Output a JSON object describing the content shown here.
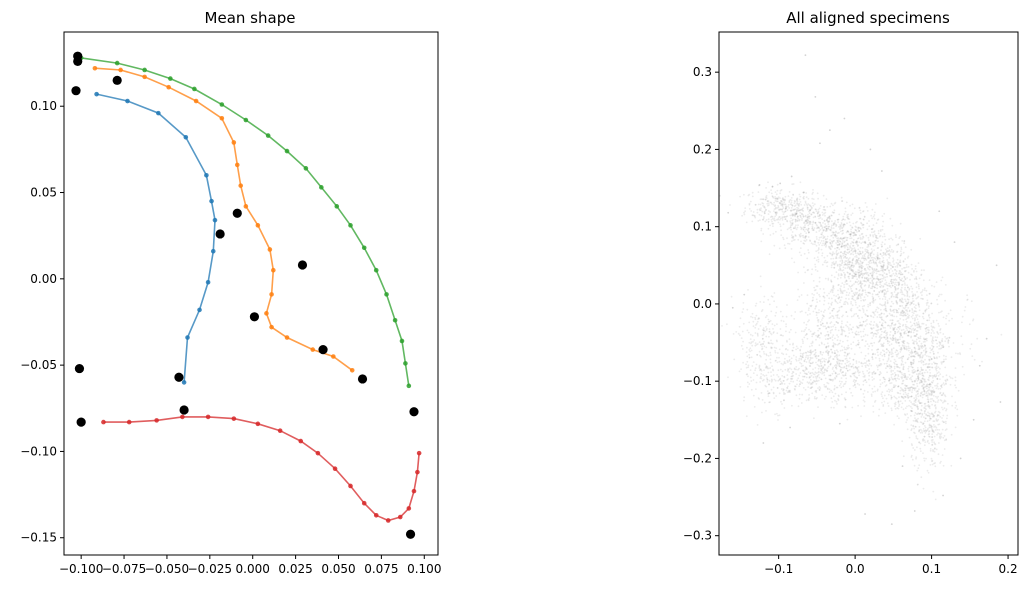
{
  "chart_data": [
    {
      "type": "line",
      "title": "Mean shape",
      "xlabel": "",
      "ylabel": "",
      "xlim": [
        -0.11,
        0.108
      ],
      "ylim": [
        -0.16,
        0.143
      ],
      "xticks": [
        -0.1,
        -0.075,
        -0.05,
        -0.025,
        0.0,
        0.025,
        0.05,
        0.075,
        0.1
      ],
      "xtick_labels": [
        "−0.100",
        "−0.075",
        "−0.050",
        "−0.025",
        "0.000",
        "0.025",
        "0.050",
        "0.075",
        "0.100"
      ],
      "yticks": [
        -0.15,
        -0.1,
        -0.05,
        0.0,
        0.05,
        0.1
      ],
      "ytick_labels": [
        "−0.15",
        "−0.10",
        "−0.05",
        "0.00",
        "0.05",
        "0.10"
      ],
      "series": [
        {
          "color": "#1f77b4",
          "points": [
            [
              -0.091,
              0.107
            ],
            [
              -0.073,
              0.103
            ],
            [
              -0.055,
              0.096
            ],
            [
              -0.039,
              0.082
            ],
            [
              -0.027,
              0.06
            ],
            [
              -0.024,
              0.045
            ],
            [
              -0.022,
              0.034
            ],
            [
              -0.023,
              0.016
            ],
            [
              -0.026,
              -0.002
            ],
            [
              -0.031,
              -0.018
            ],
            [
              -0.038,
              -0.034
            ],
            [
              -0.04,
              -0.06
            ]
          ]
        },
        {
          "color": "#ff7f0e",
          "points": [
            [
              -0.092,
              0.122
            ],
            [
              -0.077,
              0.121
            ],
            [
              -0.063,
              0.117
            ],
            [
              -0.049,
              0.111
            ],
            [
              -0.033,
              0.103
            ],
            [
              -0.018,
              0.093
            ],
            [
              -0.011,
              0.079
            ],
            [
              -0.009,
              0.066
            ],
            [
              -0.007,
              0.054
            ],
            [
              -0.004,
              0.042
            ],
            [
              0.003,
              0.031
            ],
            [
              0.01,
              0.017
            ],
            [
              0.012,
              0.005
            ],
            [
              0.011,
              -0.009
            ],
            [
              0.008,
              -0.02
            ],
            [
              0.011,
              -0.028
            ],
            [
              0.02,
              -0.034
            ],
            [
              0.035,
              -0.041
            ],
            [
              0.047,
              -0.045
            ],
            [
              0.058,
              -0.053
            ]
          ]
        },
        {
          "color": "#2ca02c",
          "points": [
            [
              -0.1,
              0.128
            ],
            [
              -0.079,
              0.125
            ],
            [
              -0.063,
              0.121
            ],
            [
              -0.048,
              0.116
            ],
            [
              -0.034,
              0.11
            ],
            [
              -0.018,
              0.101
            ],
            [
              -0.004,
              0.092
            ],
            [
              0.009,
              0.083
            ],
            [
              0.02,
              0.074
            ],
            [
              0.031,
              0.064
            ],
            [
              0.04,
              0.053
            ],
            [
              0.049,
              0.042
            ],
            [
              0.057,
              0.031
            ],
            [
              0.065,
              0.018
            ],
            [
              0.072,
              0.005
            ],
            [
              0.078,
              -0.009
            ],
            [
              0.083,
              -0.024
            ],
            [
              0.087,
              -0.036
            ],
            [
              0.089,
              -0.049
            ],
            [
              0.091,
              -0.062
            ]
          ]
        },
        {
          "color": "#d62728",
          "points": [
            [
              -0.087,
              -0.083
            ],
            [
              -0.072,
              -0.083
            ],
            [
              -0.056,
              -0.082
            ],
            [
              -0.041,
              -0.08
            ],
            [
              -0.026,
              -0.08
            ],
            [
              -0.011,
              -0.081
            ],
            [
              0.003,
              -0.084
            ],
            [
              0.016,
              -0.088
            ],
            [
              0.028,
              -0.094
            ],
            [
              0.038,
              -0.101
            ],
            [
              0.048,
              -0.11
            ],
            [
              0.057,
              -0.12
            ],
            [
              0.065,
              -0.13
            ],
            [
              0.072,
              -0.137
            ],
            [
              0.079,
              -0.14
            ],
            [
              0.086,
              -0.138
            ],
            [
              0.091,
              -0.133
            ],
            [
              0.094,
              -0.123
            ],
            [
              0.096,
              -0.112
            ],
            [
              0.097,
              -0.101
            ]
          ]
        }
      ],
      "landmarks": [
        [
          -0.102,
          0.129
        ],
        [
          -0.102,
          0.126
        ],
        [
          -0.103,
          0.109
        ],
        [
          -0.079,
          0.115
        ],
        [
          -0.009,
          0.038
        ],
        [
          -0.019,
          0.026
        ],
        [
          0.029,
          0.008
        ],
        [
          0.001,
          -0.022
        ],
        [
          0.041,
          -0.041
        ],
        [
          0.064,
          -0.058
        ],
        [
          -0.101,
          -0.052
        ],
        [
          -0.043,
          -0.057
        ],
        [
          -0.04,
          -0.076
        ],
        [
          -0.1,
          -0.083
        ],
        [
          0.094,
          -0.077
        ],
        [
          0.092,
          -0.148
        ]
      ]
    },
    {
      "type": "scatter",
      "title": "All aligned specimens",
      "xlabel": "",
      "ylabel": "",
      "xlim": [
        -0.178,
        0.213
      ],
      "ylim": [
        -0.325,
        0.352
      ],
      "xticks": [
        -0.1,
        0.0,
        0.1,
        0.2
      ],
      "xtick_labels": [
        "−0.1",
        "0.0",
        "0.1",
        "0.2"
      ],
      "yticks": [
        -0.3,
        -0.2,
        -0.1,
        0.0,
        0.1,
        0.2,
        0.3
      ],
      "ytick_labels": [
        "−0.3",
        "−0.2",
        "−0.1",
        "0.0",
        "0.1",
        "0.2",
        "0.3"
      ],
      "point_color": "#808080",
      "point_opacity": 0.15,
      "outlier_points": [
        [
          -0.166,
          0.118
        ],
        [
          -0.125,
          0.154
        ],
        [
          -0.108,
          0.152
        ],
        [
          -0.098,
          0.156
        ],
        [
          -0.083,
          0.165
        ],
        [
          -0.065,
          0.322
        ],
        [
          -0.052,
          0.268
        ],
        [
          -0.046,
          0.208
        ],
        [
          -0.033,
          0.225
        ],
        [
          -0.014,
          0.24
        ],
        [
          0.02,
          0.2
        ],
        [
          0.035,
          0.172
        ],
        [
          -0.145,
          0.012
        ],
        [
          -0.16,
          -0.005
        ],
        [
          -0.12,
          -0.18
        ],
        [
          -0.085,
          -0.16
        ],
        [
          0.19,
          -0.127
        ],
        [
          0.172,
          -0.045
        ],
        [
          0.163,
          -0.08
        ],
        [
          0.155,
          -0.15
        ],
        [
          0.138,
          -0.2
        ],
        [
          0.115,
          -0.248
        ],
        [
          0.078,
          -0.268
        ],
        [
          0.048,
          -0.285
        ],
        [
          0.013,
          -0.272
        ],
        [
          0.062,
          -0.21
        ],
        [
          -0.02,
          -0.155
        ],
        [
          0.185,
          0.05
        ],
        [
          0.11,
          0.12
        ],
        [
          0.13,
          0.08
        ]
      ],
      "clusters": [
        {
          "cx": -0.1,
          "cy": 0.125,
          "sx": 0.022,
          "sy": 0.013,
          "n": 280
        },
        {
          "cx": -0.062,
          "cy": 0.105,
          "sx": 0.022,
          "sy": 0.016,
          "n": 300
        },
        {
          "cx": -0.025,
          "cy": 0.08,
          "sx": 0.022,
          "sy": 0.022,
          "n": 300
        },
        {
          "cx": 0.0,
          "cy": 0.055,
          "sx": 0.022,
          "sy": 0.025,
          "n": 260
        },
        {
          "cx": 0.003,
          "cy": 0.02,
          "sx": 0.022,
          "sy": 0.025,
          "n": 200
        },
        {
          "cx": 0.022,
          "cy": 0.055,
          "sx": 0.02,
          "sy": 0.022,
          "n": 200
        },
        {
          "cx": 0.045,
          "cy": 0.04,
          "sx": 0.02,
          "sy": 0.022,
          "n": 220
        },
        {
          "cx": 0.065,
          "cy": 0.005,
          "sx": 0.02,
          "sy": 0.025,
          "n": 220
        },
        {
          "cx": 0.078,
          "cy": -0.04,
          "sx": 0.018,
          "sy": 0.025,
          "n": 220
        },
        {
          "cx": 0.088,
          "cy": -0.085,
          "sx": 0.018,
          "sy": 0.025,
          "n": 260
        },
        {
          "cx": 0.095,
          "cy": -0.13,
          "sx": 0.015,
          "sy": 0.025,
          "n": 220
        },
        {
          "cx": 0.098,
          "cy": -0.175,
          "sx": 0.012,
          "sy": 0.025,
          "n": 160
        },
        {
          "cx": -0.04,
          "cy": -0.02,
          "sx": 0.02,
          "sy": 0.03,
          "n": 200
        },
        {
          "cx": -0.045,
          "cy": -0.065,
          "sx": 0.028,
          "sy": 0.02,
          "n": 220
        },
        {
          "cx": 0.025,
          "cy": -0.025,
          "sx": 0.022,
          "sy": 0.022,
          "n": 180
        },
        {
          "cx": 0.05,
          "cy": -0.055,
          "sx": 0.02,
          "sy": 0.02,
          "n": 160
        },
        {
          "cx": -0.115,
          "cy": -0.075,
          "sx": 0.02,
          "sy": 0.03,
          "n": 220
        },
        {
          "cx": -0.06,
          "cy": -0.095,
          "sx": 0.03,
          "sy": 0.018,
          "n": 260
        },
        {
          "cx": 0.0,
          "cy": -0.09,
          "sx": 0.03,
          "sy": 0.018,
          "n": 220
        },
        {
          "cx": 0.06,
          "cy": -0.11,
          "sx": 0.022,
          "sy": 0.02,
          "n": 200
        },
        {
          "cx": -0.12,
          "cy": -0.03,
          "sx": 0.02,
          "sy": 0.025,
          "n": 90
        },
        {
          "cx": 0.005,
          "cy": 0.105,
          "sx": 0.02,
          "sy": 0.015,
          "n": 90
        },
        {
          "cx": 0.12,
          "cy": -0.05,
          "sx": 0.02,
          "sy": 0.03,
          "n": 90
        }
      ]
    }
  ]
}
